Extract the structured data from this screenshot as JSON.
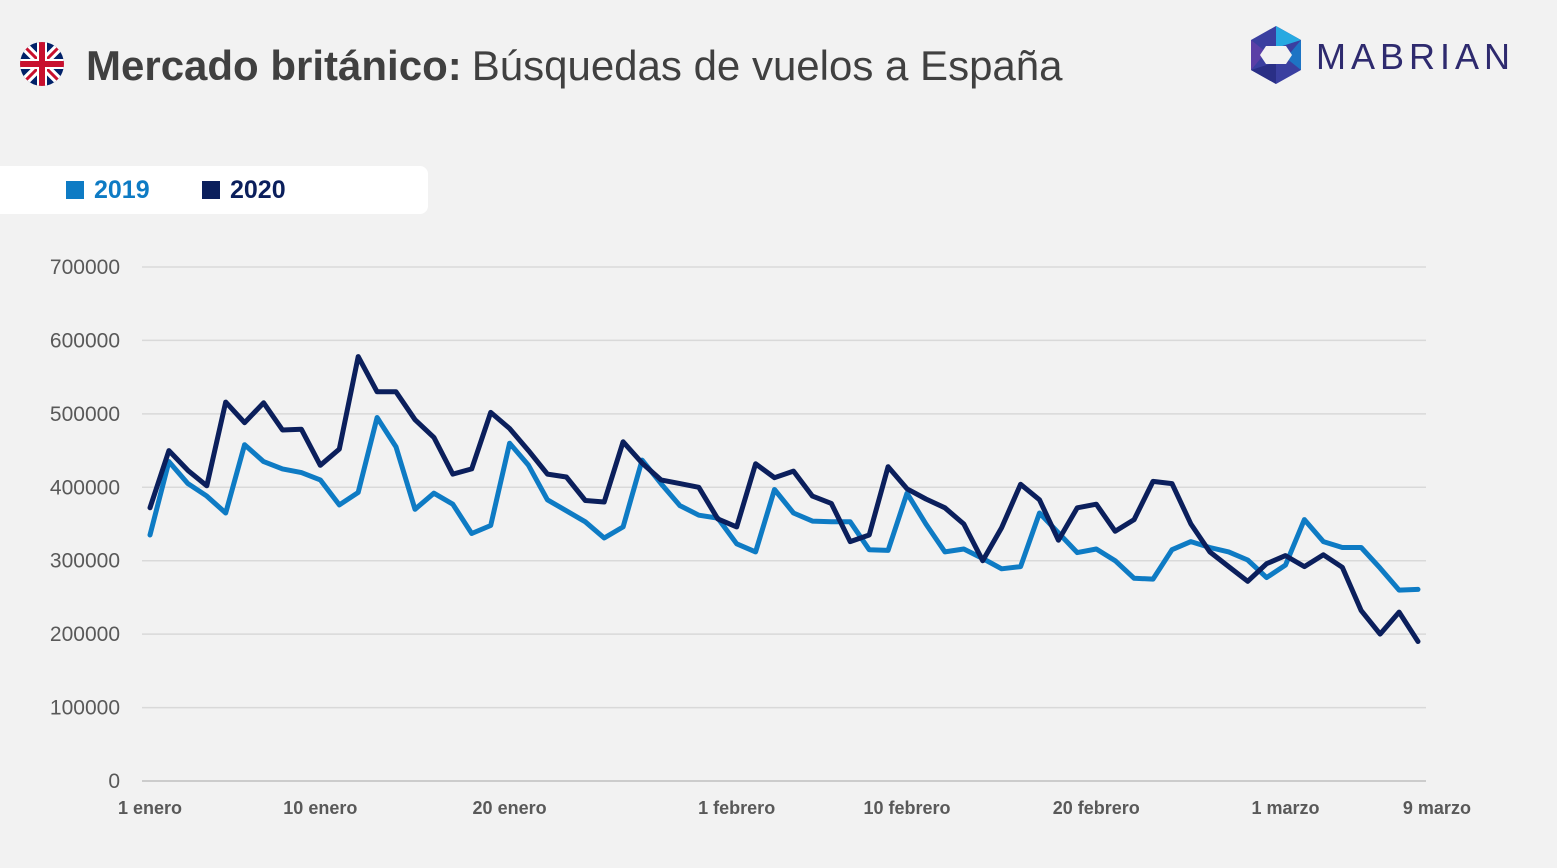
{
  "header": {
    "flag_icon": "uk-flag-icon",
    "title_bold": "Mercado británico:",
    "title_regular": "Búsquedas de vuelos a España",
    "logo_text": "MABRIAN",
    "logo_icon": "mabrian-hexagon-icon"
  },
  "colors": {
    "series_2019": "#0e7bc4",
    "series_2020": "#0b1f5c",
    "grid": "#d9d9d9",
    "axis": "#bfbfbf"
  },
  "chart_data": {
    "type": "line",
    "title": "",
    "xlabel": "",
    "ylabel": "",
    "ylim": [
      0,
      700000
    ],
    "yticks": [
      0,
      100000,
      200000,
      300000,
      400000,
      500000,
      600000,
      700000
    ],
    "ytick_labels": [
      "0",
      "100000",
      "200000",
      "300000",
      "400000",
      "500000",
      "600000",
      "700000"
    ],
    "x_start": "1 enero",
    "x_end": "9 marzo",
    "xtick_labels": [
      {
        "label": "1 enero",
        "day": 1
      },
      {
        "label": "10 enero",
        "day": 10
      },
      {
        "label": "20 enero",
        "day": 20
      },
      {
        "label": "1 febrero",
        "day": 32
      },
      {
        "label": "10 febrero",
        "day": 41
      },
      {
        "label": "20 febrero",
        "day": 51
      },
      {
        "label": "1 marzo",
        "day": 61
      },
      {
        "label": "9 marzo",
        "day": 69
      }
    ],
    "grid": true,
    "legend_position": "top-left",
    "series": [
      {
        "name": "2019",
        "values": [
          335000,
          435000,
          405000,
          388000,
          365000,
          458000,
          435000,
          425000,
          420000,
          410000,
          376000,
          393000,
          495000,
          455000,
          370000,
          392000,
          377000,
          337000,
          348000,
          460000,
          430000,
          383000,
          368000,
          353000,
          331000,
          346000,
          437000,
          405000,
          375000,
          362000,
          358000,
          323000,
          312000,
          397000,
          365000,
          354000,
          353000,
          353000,
          315000,
          314000,
          392000,
          350000,
          312000,
          316000,
          303000,
          289000,
          292000,
          365000,
          338000,
          311000,
          316000,
          300000,
          276000,
          275000,
          315000,
          326000,
          318000,
          312000,
          301000,
          277000,
          294000,
          356000,
          326000,
          318000,
          318000,
          290000,
          260000,
          261000
        ]
      },
      {
        "name": "2020",
        "values": [
          372000,
          450000,
          423000,
          402000,
          516000,
          488000,
          515000,
          478000,
          479000,
          430000,
          452000,
          578000,
          530000,
          530000,
          492000,
          468000,
          418000,
          425000,
          502000,
          480000,
          450000,
          418000,
          414000,
          382000,
          380000,
          462000,
          433000,
          410000,
          405000,
          400000,
          357000,
          346000,
          432000,
          413000,
          422000,
          388000,
          378000,
          326000,
          335000,
          428000,
          398000,
          384000,
          372000,
          350000,
          300000,
          345000,
          404000,
          383000,
          328000,
          372000,
          377000,
          340000,
          356000,
          408000,
          405000,
          350000,
          312000,
          292000,
          272000,
          296000,
          307000,
          292000,
          308000,
          291000,
          232000,
          200000,
          230000,
          190000
        ]
      }
    ]
  }
}
